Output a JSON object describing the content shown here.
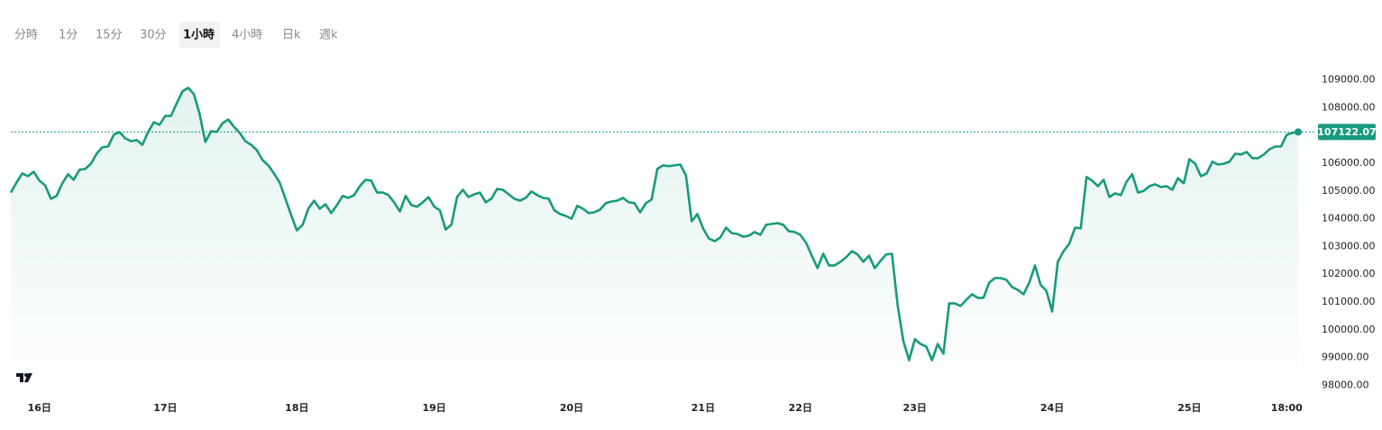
{
  "intervals": [
    "分時",
    "1分",
    "15分",
    "30分",
    "1小時",
    "4小時",
    "日k",
    "週k"
  ],
  "active_interval": 4,
  "chart_data": {
    "type": "line",
    "color": "#189a7e",
    "xlim": [
      0,
      225
    ],
    "xticks": [
      {
        "value": 5,
        "label": "16日"
      },
      {
        "value": 27,
        "label": "17日"
      },
      {
        "value": 50,
        "label": "18日"
      },
      {
        "value": 74,
        "label": "19日"
      },
      {
        "value": 98,
        "label": "20日"
      },
      {
        "value": 121,
        "label": "21日"
      },
      {
        "value": 138,
        "label": "22日"
      },
      {
        "value": 158,
        "label": "23日"
      },
      {
        "value": 182,
        "label": "24日"
      },
      {
        "value": 206,
        "label": "25日"
      },
      {
        "value": 223,
        "label": "18:00"
      }
    ],
    "ylim": [
      97400,
      109600
    ],
    "yticks": [
      {
        "value": 98000,
        "label": "98000.00"
      },
      {
        "value": 99000,
        "label": "99000.00"
      },
      {
        "value": 100000,
        "label": "100000.00"
      },
      {
        "value": 101000,
        "label": "101000.00"
      },
      {
        "value": 102000,
        "label": "102000.00"
      },
      {
        "value": 103000,
        "label": "103000.00"
      },
      {
        "value": 104000,
        "label": "104000.00"
      },
      {
        "value": 105000,
        "label": "105000.00"
      },
      {
        "value": 106000,
        "label": "106000.00"
      },
      {
        "value": 107000,
        "label": "107000.00"
      },
      {
        "value": 108000,
        "label": "108000.00"
      },
      {
        "value": 109000,
        "label": "109000.00"
      }
    ],
    "values": [
      104940,
      105300,
      105630,
      105530,
      105690,
      105370,
      105200,
      104720,
      104820,
      105270,
      105600,
      105400,
      105760,
      105790,
      105980,
      106340,
      106570,
      106600,
      107020,
      107120,
      106890,
      106790,
      106830,
      106660,
      107120,
      107470,
      107380,
      107700,
      107700,
      108160,
      108580,
      108710,
      108480,
      107770,
      106760,
      107150,
      107120,
      107440,
      107570,
      107310,
      107090,
      106790,
      106660,
      106470,
      106110,
      105920,
      105630,
      105300,
      104720,
      104130,
      103580,
      103780,
      104360,
      104650,
      104360,
      104520,
      104200,
      104490,
      104820,
      104750,
      104850,
      105170,
      105400,
      105370,
      104940,
      104940,
      104850,
      104590,
      104260,
      104820,
      104490,
      104430,
      104590,
      104780,
      104430,
      104300,
      103610,
      103780,
      104780,
      105040,
      104780,
      104880,
      104940,
      104590,
      104720,
      105070,
      105040,
      104880,
      104720,
      104650,
      104750,
      104980,
      104850,
      104750,
      104720,
      104300,
      104170,
      104100,
      104000,
      104460,
      104360,
      104200,
      104230,
      104330,
      104560,
      104620,
      104650,
      104750,
      104590,
      104560,
      104230,
      104560,
      104690,
      105790,
      105920,
      105890,
      105920,
      105950,
      105560,
      103910,
      104170,
      103650,
      103290,
      103190,
      103320,
      103680,
      103480,
      103450,
      103350,
      103390,
      103520,
      103420,
      103780,
      103810,
      103840,
      103780,
      103550,
      103520,
      103420,
      103130,
      102670,
      102220,
      102740,
      102320,
      102320,
      102450,
      102610,
      102830,
      102710,
      102450,
      102670,
      102220,
      102480,
      102710,
      102740,
      100890,
      99590,
      98910,
      99660,
      99490,
      99400,
      98910,
      99490,
      99140,
      100950,
      100950,
      100860,
      101080,
      101280,
      101150,
      101150,
      101700,
      101860,
      101860,
      101800,
      101540,
      101440,
      101280,
      101700,
      102320,
      101610,
      101410,
      100660,
      102450,
      102830,
      103100,
      103680,
      103650,
      105500,
      105370,
      105170,
      105400,
      104780,
      104910,
      104850,
      105330,
      105600,
      104940,
      105000,
      105170,
      105240,
      105140,
      105170,
      105040,
      105460,
      105270,
      106140,
      105980,
      105530,
      105630,
      106050,
      105950,
      105980,
      106050,
      106340,
      106310,
      106400,
      106180,
      106180,
      106310,
      106500,
      106600,
      106600,
      107020,
      107090,
      107122.07
    ]
  }
}
